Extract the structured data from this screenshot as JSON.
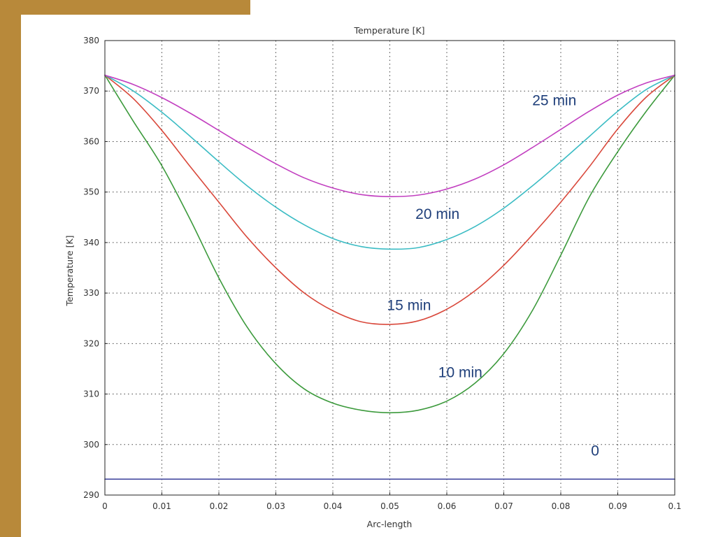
{
  "colors": {
    "accent_bar": "#b8893a",
    "background": "#ffffff",
    "grid": "#444444",
    "frame": "#222222",
    "annotation": "#1f3f7a"
  },
  "chart_data": {
    "type": "line",
    "title": "Temperature [K]",
    "xlabel": "Arc-length",
    "ylabel": "Temperature [K]",
    "xlim": [
      0,
      0.1
    ],
    "ylim": [
      290,
      380
    ],
    "xticks": [
      0,
      0.01,
      0.02,
      0.03,
      0.04,
      0.05,
      0.06,
      0.07,
      0.08,
      0.09,
      0.1
    ],
    "xtick_labels": [
      "0",
      "0.01",
      "0.02",
      "0.03",
      "0.04",
      "0.05",
      "0.06",
      "0.07",
      "0.08",
      "0.09",
      "0.1"
    ],
    "yticks": [
      290,
      300,
      310,
      320,
      330,
      340,
      350,
      360,
      370,
      380
    ],
    "ytick_labels": [
      "290",
      "300",
      "310",
      "320",
      "330",
      "340",
      "350",
      "360",
      "370",
      "380"
    ],
    "grid": true,
    "series": [
      {
        "name": "0",
        "color": "#3a3f9a",
        "x": [
          0,
          0.1
        ],
        "y": [
          293.15,
          293.15
        ]
      },
      {
        "name": "10 min",
        "color": "#3c9a3c",
        "x": [
          0,
          0.005,
          0.01,
          0.015,
          0.02,
          0.025,
          0.03,
          0.035,
          0.04,
          0.045,
          0.05,
          0.055,
          0.06,
          0.065,
          0.07,
          0.075,
          0.08,
          0.085,
          0.09,
          0.095,
          0.1
        ],
        "y": [
          373.15,
          364.0,
          355.2,
          344.5,
          333.0,
          323.2,
          316.0,
          311.0,
          308.2,
          306.8,
          306.3,
          306.8,
          308.6,
          312.2,
          318.0,
          326.5,
          337.5,
          349.0,
          358.0,
          366.0,
          373.15
        ]
      },
      {
        "name": "15 min",
        "color": "#d9483b",
        "x": [
          0,
          0.005,
          0.01,
          0.015,
          0.02,
          0.025,
          0.03,
          0.035,
          0.04,
          0.045,
          0.05,
          0.055,
          0.06,
          0.065,
          0.07,
          0.075,
          0.08,
          0.085,
          0.09,
          0.095,
          0.1
        ],
        "y": [
          373.15,
          368.5,
          362.2,
          355.0,
          348.0,
          341.0,
          335.0,
          330.0,
          326.5,
          324.3,
          323.8,
          324.5,
          326.8,
          330.5,
          335.5,
          341.5,
          348.0,
          355.0,
          362.5,
          368.8,
          373.15
        ]
      },
      {
        "name": "20 min",
        "color": "#3bbcc4",
        "x": [
          0,
          0.005,
          0.01,
          0.015,
          0.02,
          0.025,
          0.03,
          0.035,
          0.04,
          0.045,
          0.05,
          0.055,
          0.06,
          0.065,
          0.07,
          0.075,
          0.08,
          0.085,
          0.09,
          0.095,
          0.1
        ],
        "y": [
          373.15,
          370.0,
          365.8,
          361.0,
          356.0,
          351.2,
          347.0,
          343.5,
          340.8,
          339.2,
          338.7,
          339.0,
          340.6,
          343.2,
          346.8,
          351.2,
          356.0,
          361.0,
          366.0,
          370.3,
          373.15
        ]
      },
      {
        "name": "25 min",
        "color": "#c23fc0",
        "x": [
          0,
          0.005,
          0.01,
          0.015,
          0.02,
          0.025,
          0.03,
          0.035,
          0.04,
          0.045,
          0.05,
          0.055,
          0.06,
          0.065,
          0.07,
          0.075,
          0.08,
          0.085,
          0.09,
          0.095,
          0.1
        ],
        "y": [
          373.15,
          371.3,
          368.7,
          365.6,
          362.2,
          358.8,
          355.6,
          352.8,
          350.8,
          349.5,
          349.1,
          349.4,
          350.6,
          352.6,
          355.4,
          358.8,
          362.4,
          366.0,
          369.2,
          371.6,
          373.15
        ]
      }
    ],
    "annotations": [
      {
        "text": "25 min",
        "x": 0.075,
        "y": 367.2
      },
      {
        "text": "20 min",
        "x": 0.0545,
        "y": 344.7
      },
      {
        "text": "15 min",
        "x": 0.0495,
        "y": 326.6
      },
      {
        "text": "10 min",
        "x": 0.0585,
        "y": 313.3
      },
      {
        "text": "0",
        "x": 0.0853,
        "y": 297.8
      }
    ]
  }
}
